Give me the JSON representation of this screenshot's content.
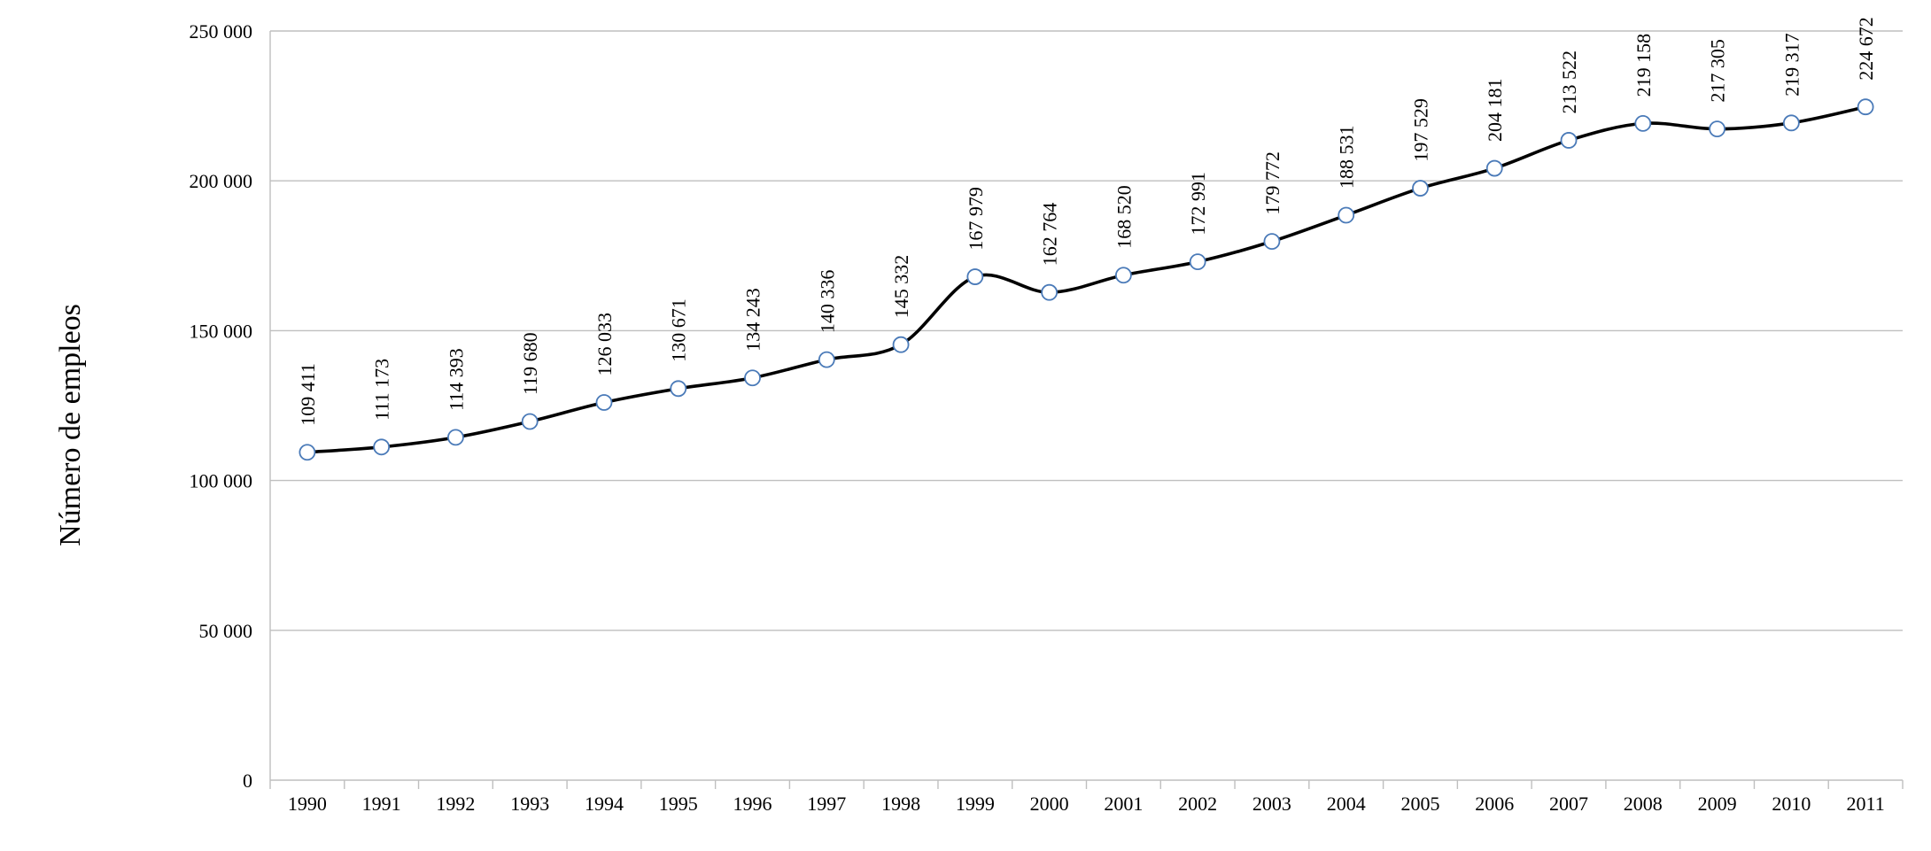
{
  "chart_data": {
    "type": "line",
    "title": "",
    "xlabel": "",
    "ylabel": "Número de empleos",
    "ylim": [
      0,
      250000
    ],
    "y_ticks": [
      0,
      50000,
      100000,
      150000,
      200000,
      250000
    ],
    "y_tick_labels": [
      "0",
      "50 000",
      "100 000",
      "150 000",
      "200 000",
      "250 000"
    ],
    "categories": [
      "1990",
      "1991",
      "1992",
      "1993",
      "1994",
      "1995",
      "1996",
      "1997",
      "1998",
      "1999",
      "2000",
      "2001",
      "2002",
      "2003",
      "2004",
      "2005",
      "2006",
      "2007",
      "2008",
      "2009",
      "2010",
      "2011"
    ],
    "series": [
      {
        "values": [
          109411,
          111173,
          114393,
          119680,
          126033,
          130671,
          134243,
          140336,
          145332,
          167979,
          162764,
          168520,
          172991,
          179772,
          188531,
          197529,
          204181,
          213522,
          219158,
          217305,
          219317,
          224672
        ],
        "labels": [
          "109 411",
          "111 173",
          "114  393",
          "119 680",
          "126 033",
          "130 671",
          "134 243",
          "140 336",
          "145 332",
          "167 979",
          "162 764",
          "168 520",
          "172 991",
          "179 772",
          "188 531",
          "197 529",
          "204 181",
          "213 522",
          "219 158",
          "217 305",
          "219 317",
          "224 672"
        ]
      }
    ],
    "grid": true,
    "legend": "none",
    "smooth": true,
    "colors": {
      "line": "#000000",
      "marker_fill": "#ffffff",
      "marker_stroke": "#4a7ab8",
      "grid": "#bfbfbf"
    }
  }
}
